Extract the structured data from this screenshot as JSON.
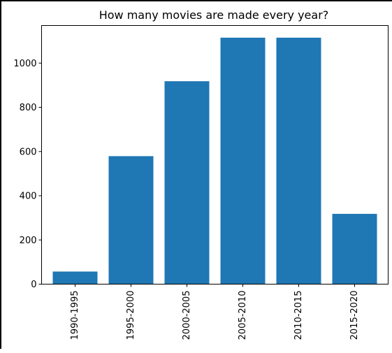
{
  "chart_data": {
    "type": "bar",
    "title": "How many movies are made every year?",
    "xlabel": "",
    "ylabel": "",
    "categories": [
      "1990-1995",
      "1995-2000",
      "2000-2005",
      "2005-2010",
      "2010-2015",
      "2015-2020"
    ],
    "values": [
      57,
      579,
      918,
      1115,
      1115,
      318
    ],
    "yticks": [
      0,
      200,
      400,
      600,
      800,
      1000
    ],
    "ylim": [
      0,
      1170
    ],
    "grid": false,
    "bar_color": "#1f77b4"
  }
}
